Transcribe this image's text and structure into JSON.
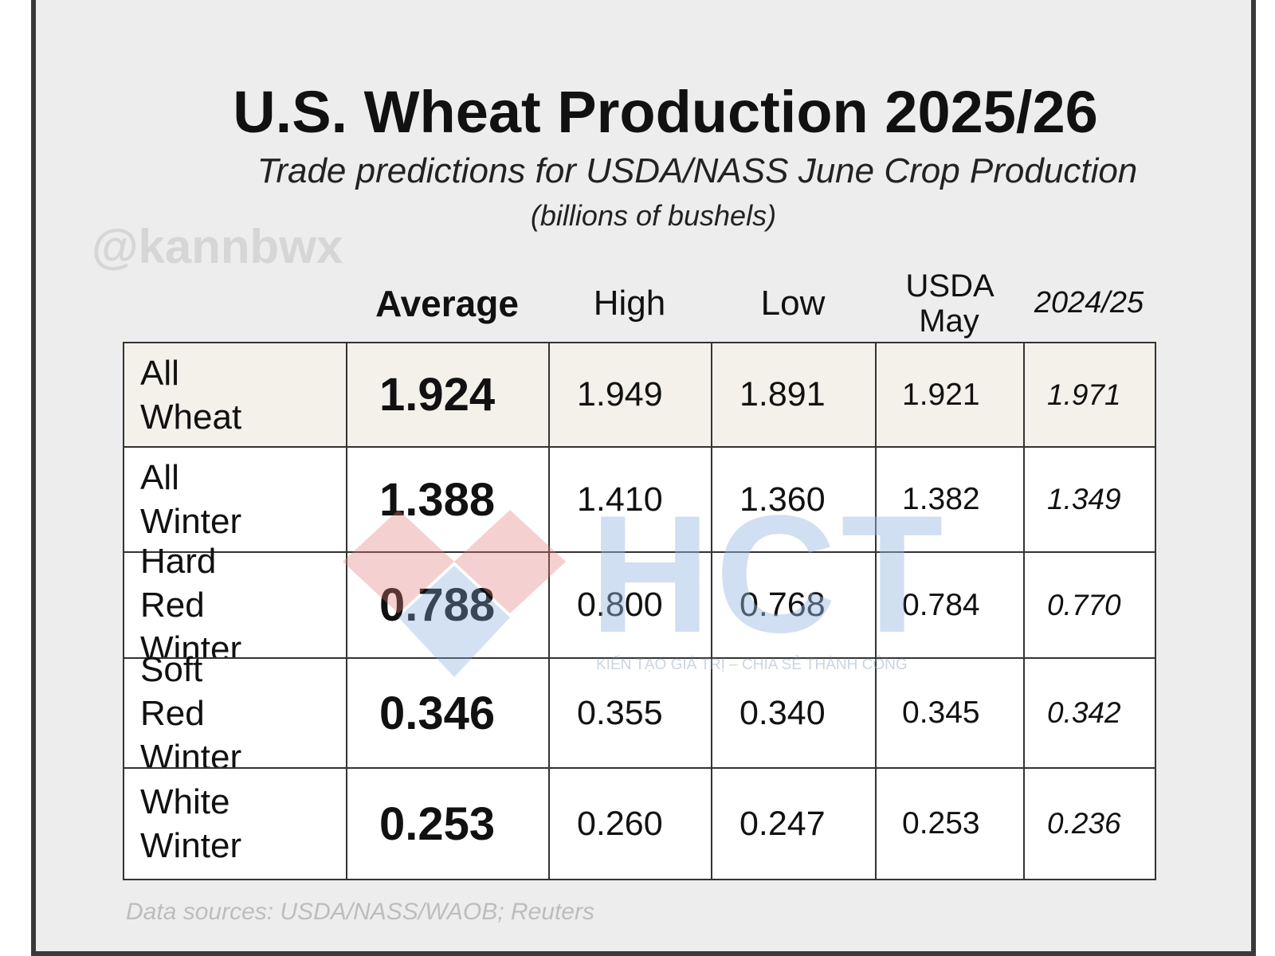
{
  "header": {
    "title": "U.S. Wheat Production 2025/26",
    "subtitle": "Trade predictions for USDA/NASS June Crop Production",
    "units": "(billions of bushels)"
  },
  "watermarks": {
    "handle": "@kannbwx",
    "logo": "HCT",
    "slogan": "KIẾN TẠO GIÁ TRỊ – CHIA SẺ THÀNH CÔNG"
  },
  "table": {
    "columns": [
      "Average",
      "High",
      "Low",
      "USDA May",
      "2024/25"
    ],
    "rows": [
      [
        "All Wheat",
        "1.924",
        "1.949",
        "1.891",
        "1.921",
        "1.971"
      ],
      [
        "All Winter",
        "1.388",
        "1.410",
        "1.360",
        "1.382",
        "1.349"
      ],
      [
        "Hard Red Winter",
        "0.788",
        "0.800",
        "0.768",
        "0.784",
        "0.770"
      ],
      [
        "Soft Red Winter",
        "0.346",
        "0.355",
        "0.340",
        "0.345",
        "0.342"
      ],
      [
        "White Winter",
        "0.253",
        "0.260",
        "0.247",
        "0.253",
        "0.236"
      ]
    ]
  },
  "footer": {
    "source": "Data sources: USDA/NASS/WAOB; Reuters"
  }
}
